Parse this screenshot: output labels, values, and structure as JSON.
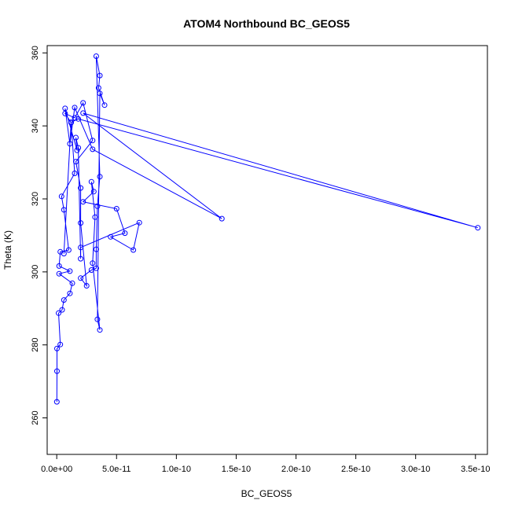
{
  "chart_data": {
    "type": "line",
    "title": "ATOM4 Northbound BC_GEOS5",
    "xlabel": "BC_GEOS5",
    "ylabel": "Theta (K)",
    "xlim": [
      -8e-12,
      3.6e-10
    ],
    "ylim": [
      250,
      362
    ],
    "x_ticks": [
      0,
      5e-11,
      1e-10,
      1.5e-10,
      2e-10,
      2.5e-10,
      3e-10,
      3.5e-10
    ],
    "x_tick_labels": [
      "0.0e+00",
      "5.0e-11",
      "1.0e-10",
      "1.5e-10",
      "2.0e-10",
      "2.5e-10",
      "3.0e-10",
      "3.5e-10"
    ],
    "y_ticks": [
      260,
      280,
      300,
      320,
      340,
      360
    ],
    "y_tick_labels": [
      "260",
      "280",
      "300",
      "320",
      "340",
      "360"
    ],
    "grid": false,
    "series": [
      {
        "color": "#0000ff",
        "marker": "open-circle",
        "points": [
          [
            1e-13,
            264.4
          ],
          [
            2e-13,
            272.8
          ],
          [
            2e-13,
            279.0
          ],
          [
            3e-12,
            280.1
          ],
          [
            1.5e-12,
            288.7
          ],
          [
            4.5e-12,
            289.6
          ],
          [
            6e-12,
            292.3
          ],
          [
            1.1e-11,
            294.1
          ],
          [
            1.3e-11,
            296.9
          ],
          [
            2e-12,
            299.5
          ],
          [
            1.1e-11,
            300.2
          ],
          [
            2e-12,
            301.6
          ],
          [
            3e-12,
            305.5
          ],
          [
            1e-11,
            306.0
          ],
          [
            6e-12,
            317.0
          ],
          [
            4e-12,
            320.7
          ],
          [
            1.5e-11,
            327.0
          ],
          [
            1.2e-11,
            340.9
          ],
          [
            7e-12,
            343.4
          ],
          [
            1.5e-11,
            342.2
          ],
          [
            2.2e-11,
            346.3
          ],
          [
            3e-11,
            336.0
          ],
          [
            1.6e-11,
            330.2
          ],
          [
            2e-11,
            323.0
          ],
          [
            2e-11,
            313.4
          ],
          [
            2.5e-11,
            296.2
          ],
          [
            2e-11,
            298.3
          ],
          [
            2.9e-11,
            300.5
          ],
          [
            3.3e-11,
            301.0
          ],
          [
            3.3e-11,
            306.2
          ],
          [
            3.4e-11,
            318.0
          ],
          [
            3.6e-11,
            326.1
          ],
          [
            3.3e-11,
            359.1
          ],
          [
            3.6e-11,
            353.8
          ],
          [
            3.5e-11,
            350.4
          ],
          [
            4e-11,
            345.7
          ],
          [
            3.6e-11,
            348.9
          ],
          [
            3.4e-11,
            287.0
          ],
          [
            3.6e-11,
            284.1
          ],
          [
            3e-11,
            302.4
          ],
          [
            3.2e-11,
            315.0
          ],
          [
            2.9e-11,
            324.7
          ],
          [
            3.1e-11,
            322.0
          ],
          [
            2.2e-11,
            319.2
          ],
          [
            5e-11,
            317.3
          ],
          [
            5.7e-11,
            310.6
          ],
          [
            4.5e-11,
            309.6
          ],
          [
            6.4e-11,
            306.0
          ],
          [
            6.9e-11,
            313.5
          ],
          [
            2e-11,
            306.7
          ],
          [
            2e-11,
            303.6
          ],
          [
            1.8e-11,
            334.0
          ],
          [
            1.6e-11,
            336.8
          ],
          [
            1.7e-11,
            333.3
          ],
          [
            7e-12,
            344.8
          ],
          [
            1.1e-11,
            335.1
          ],
          [
            1.5e-11,
            345.0
          ],
          [
            3e-11,
            333.6
          ],
          [
            1.38e-10,
            314.6
          ],
          [
            2.2e-11,
            343.5
          ],
          [
            3.52e-10,
            312.1
          ],
          [
            1.8e-11,
            341.9
          ],
          [
            1.2e-11,
            341.0
          ],
          [
            6e-12,
            305.0
          ]
        ]
      }
    ]
  }
}
